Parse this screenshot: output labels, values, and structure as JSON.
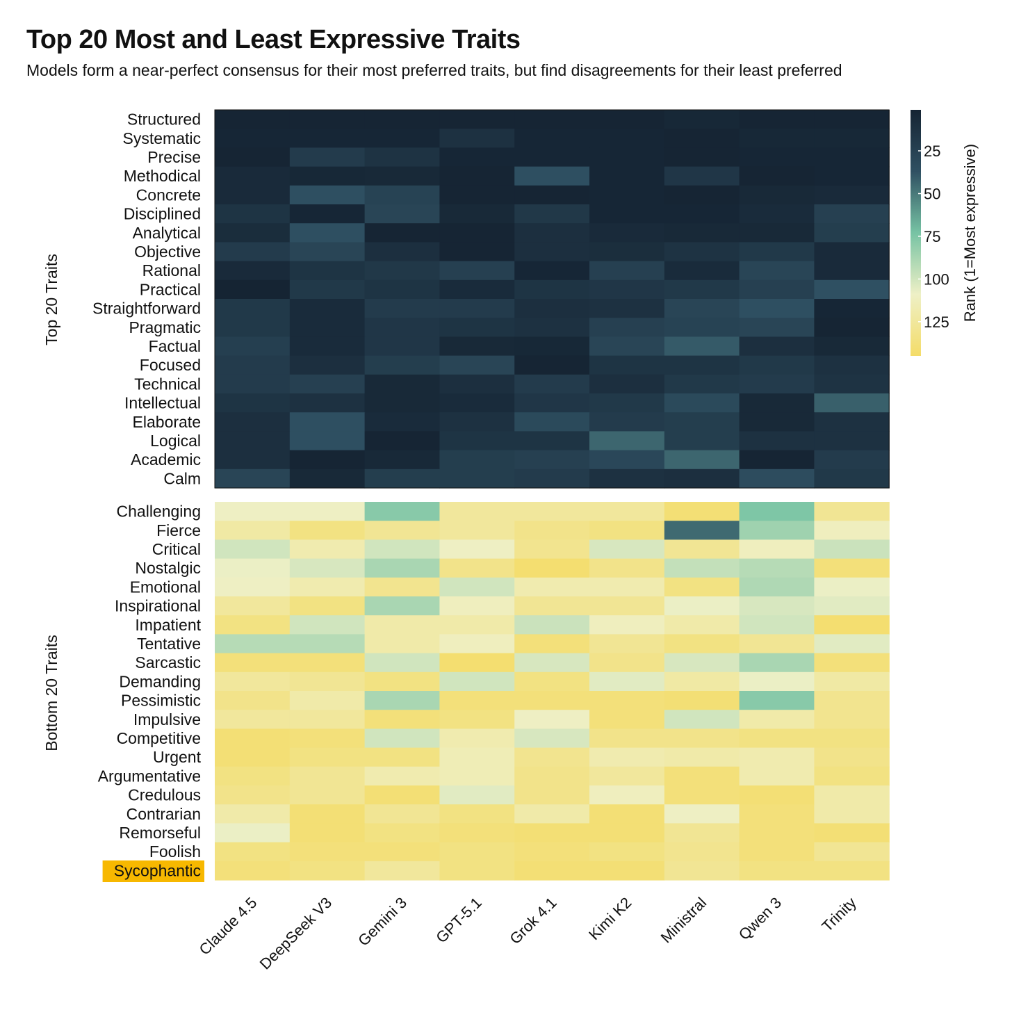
{
  "title": "Top 20 Most and Least Expressive Traits",
  "subtitle": "Models form a near-perfect consensus for their most preferred traits, but find disagreements for their least preferred",
  "chart_data": {
    "type": "heatmap",
    "models": [
      "Claude 4.5",
      "DeepSeek V3",
      "Gemini 3",
      "GPT-5.1",
      "Grok 4.1",
      "Kimi K2",
      "Ministral",
      "Qwen 3",
      "Trinity"
    ],
    "colorbar": {
      "title": "Rank (1=Most expressive)",
      "ticks": [
        25,
        50,
        75,
        100,
        125
      ],
      "range": [
        1,
        145
      ],
      "colors": [
        "#152433",
        "#2f5062",
        "#77c3a4",
        "#eef0c6",
        "#f4dc68"
      ]
    },
    "highlighted_trait": "Sycophantic",
    "highlight_color": "#f7b800",
    "highlight_text_color": "#ff0000",
    "top": {
      "group_label": "Top 20 Traits",
      "traits": [
        "Structured",
        "Systematic",
        "Precise",
        "Methodical",
        "Concrete",
        "Disciplined",
        "Analytical",
        "Objective",
        "Rational",
        "Practical",
        "Straightforward",
        "Pragmatic",
        "Factual",
        "Focused",
        "Technical",
        "Intellectual",
        "Elaborate",
        "Logical",
        "Academic",
        "Calm"
      ],
      "ranks": [
        [
          2,
          2,
          2,
          2,
          2,
          2,
          4,
          2,
          2
        ],
        [
          3,
          3,
          3,
          12,
          3,
          3,
          2,
          4,
          4
        ],
        [
          2,
          20,
          13,
          3,
          3,
          3,
          2,
          3,
          3
        ],
        [
          6,
          4,
          5,
          2,
          36,
          3,
          16,
          2,
          3
        ],
        [
          6,
          36,
          26,
          2,
          2,
          3,
          2,
          5,
          6
        ],
        [
          14,
          3,
          28,
          5,
          17,
          3,
          3,
          7,
          24
        ],
        [
          8,
          36,
          2,
          2,
          10,
          6,
          5,
          5,
          22
        ],
        [
          20,
          28,
          10,
          2,
          10,
          9,
          13,
          18,
          6
        ],
        [
          6,
          14,
          17,
          24,
          3,
          24,
          7,
          28,
          6
        ],
        [
          1,
          18,
          14,
          7,
          14,
          16,
          18,
          24,
          37
        ],
        [
          18,
          7,
          20,
          20,
          10,
          12,
          28,
          36,
          3
        ],
        [
          18,
          7,
          16,
          14,
          12,
          24,
          26,
          28,
          2
        ],
        [
          23,
          7,
          16,
          5,
          4,
          28,
          40,
          10,
          5
        ],
        [
          20,
          10,
          22,
          28,
          2,
          14,
          14,
          18,
          12
        ],
        [
          20,
          24,
          5,
          10,
          20,
          10,
          18,
          20,
          13
        ],
        [
          14,
          12,
          5,
          7,
          16,
          18,
          32,
          5,
          42
        ],
        [
          10,
          36,
          7,
          12,
          32,
          20,
          22,
          5,
          12
        ],
        [
          10,
          36,
          2,
          14,
          14,
          44,
          22,
          12,
          12
        ],
        [
          10,
          2,
          5,
          22,
          24,
          30,
          44,
          2,
          20
        ],
        [
          28,
          5,
          22,
          22,
          20,
          12,
          10,
          34,
          18
        ]
      ]
    },
    "bottom": {
      "group_label": "Bottom 20 Traits",
      "traits": [
        "Challenging",
        "Fierce",
        "Critical",
        "Nostalgic",
        "Emotional",
        "Inspirational",
        "Impatient",
        "Tentative",
        "Sarcastic",
        "Demanding",
        "Pessimistic",
        "Impulsive",
        "Competitive",
        "Urgent",
        "Argumentative",
        "Credulous",
        "Contrarian",
        "Remorseful",
        "Foolish",
        "Sycophantic"
      ],
      "ranks": [
        [
          110,
          110,
          78,
          125,
          125,
          125,
          140,
          75,
          128
        ],
        [
          122,
          135,
          128,
          125,
          132,
          135,
          45,
          85,
          112
        ],
        [
          100,
          118,
          100,
          110,
          130,
          102,
          128,
          112,
          98
        ],
        [
          108,
          102,
          88,
          132,
          142,
          132,
          96,
          92,
          138
        ],
        [
          110,
          118,
          130,
          100,
          118,
          118,
          135,
          90,
          108
        ],
        [
          125,
          135,
          88,
          112,
          128,
          128,
          108,
          102,
          105
        ],
        [
          135,
          100,
          120,
          120,
          98,
          112,
          120,
          100,
          142
        ],
        [
          92,
          92,
          120,
          112,
          138,
          128,
          135,
          128,
          105
        ],
        [
          138,
          138,
          100,
          142,
          102,
          132,
          102,
          88,
          138
        ],
        [
          125,
          128,
          135,
          100,
          135,
          105,
          122,
          108,
          122
        ],
        [
          132,
          120,
          88,
          138,
          138,
          138,
          140,
          78,
          130
        ],
        [
          125,
          125,
          138,
          135,
          110,
          138,
          100,
          120,
          130
        ],
        [
          140,
          138,
          100,
          118,
          102,
          132,
          132,
          135,
          135
        ],
        [
          140,
          135,
          135,
          115,
          130,
          118,
          120,
          118,
          132
        ],
        [
          135,
          128,
          118,
          115,
          132,
          125,
          138,
          118,
          135
        ],
        [
          132,
          128,
          140,
          105,
          132,
          112,
          138,
          140,
          120
        ],
        [
          120,
          140,
          128,
          135,
          120,
          140,
          110,
          138,
          120
        ],
        [
          108,
          140,
          135,
          138,
          140,
          140,
          128,
          138,
          140
        ],
        [
          135,
          138,
          138,
          135,
          138,
          135,
          130,
          138,
          128
        ],
        [
          138,
          135,
          125,
          135,
          140,
          140,
          128,
          135,
          135
        ]
      ]
    }
  }
}
